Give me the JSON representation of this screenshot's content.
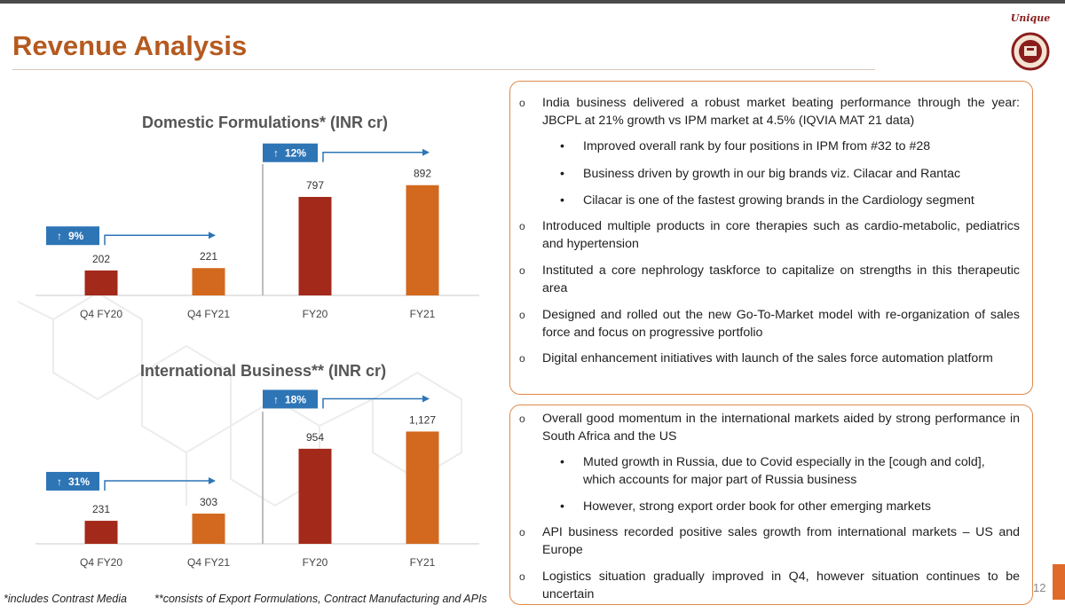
{
  "page": {
    "title": "Revenue Analysis",
    "page_number": "12",
    "logo_text": "Unique",
    "colors": {
      "accent": "#b55a1f",
      "bar_dark": "#a3291a",
      "bar_orange": "#d2691e",
      "badge": "#2e75b6",
      "panel_border": "#e0894a"
    }
  },
  "chart_data": [
    {
      "type": "bar",
      "title": "Domestic Formulations* (INR cr)",
      "categories": [
        "Q4 FY20",
        "Q4 FY21",
        "FY20",
        "FY21"
      ],
      "values": [
        202,
        221,
        797,
        892
      ],
      "value_labels": [
        "202",
        "221",
        "797",
        "892"
      ],
      "growth": [
        {
          "from": "Q4 FY20",
          "to": "Q4 FY21",
          "label": "9%"
        },
        {
          "from": "FY20",
          "to": "FY21",
          "label": "12%"
        }
      ]
    },
    {
      "type": "bar",
      "title": "International Business** (INR cr)",
      "categories": [
        "Q4 FY20",
        "Q4 FY21",
        "FY20",
        "FY21"
      ],
      "values": [
        231,
        303,
        954,
        1127
      ],
      "value_labels": [
        "231",
        "303",
        "954",
        "1,127"
      ],
      "growth": [
        {
          "from": "Q4 FY20",
          "to": "Q4 FY21",
          "label": "31%"
        },
        {
          "from": "FY20",
          "to": "FY21",
          "label": "18%"
        }
      ]
    }
  ],
  "panel1": {
    "b1": "India business delivered a robust market beating performance through the year: JBCPL at 21% growth vs IPM market at 4.5% (IQVIA MAT 21 data)",
    "s1": "Improved overall rank by four positions in IPM from #32 to #28",
    "s2": "Business driven by growth in our big brands viz. Cilacar and Rantac",
    "s3": "Cilacar is one of the fastest growing brands in the Cardiology segment",
    "b2": "Introduced multiple products in core therapies such as cardio-metabolic, pediatrics and hypertension",
    "b3": "Instituted a core nephrology taskforce to capitalize on strengths in this therapeutic area",
    "b4": "Designed and rolled out the new Go-To-Market model with re-organization of sales force and focus on progressive portfolio",
    "b5": "Digital enhancement initiatives with launch of the sales force automation platform"
  },
  "panel2": {
    "b1": "Overall good momentum in the international markets aided by strong performance in South Africa and the US",
    "s1": "Muted growth in Russia, due to Covid especially in the [cough and cold], which accounts for major part of Russia business",
    "s2": "However, strong export order book for other emerging markets",
    "b2": "API business recorded positive sales growth from international markets – US and Europe",
    "b3": "Logistics situation gradually improved in Q4, however situation continues to be uncertain"
  },
  "footnotes": {
    "f1": "*includes Contrast Media",
    "f2": "**consists of Export Formulations, Contract Manufacturing and APIs"
  }
}
